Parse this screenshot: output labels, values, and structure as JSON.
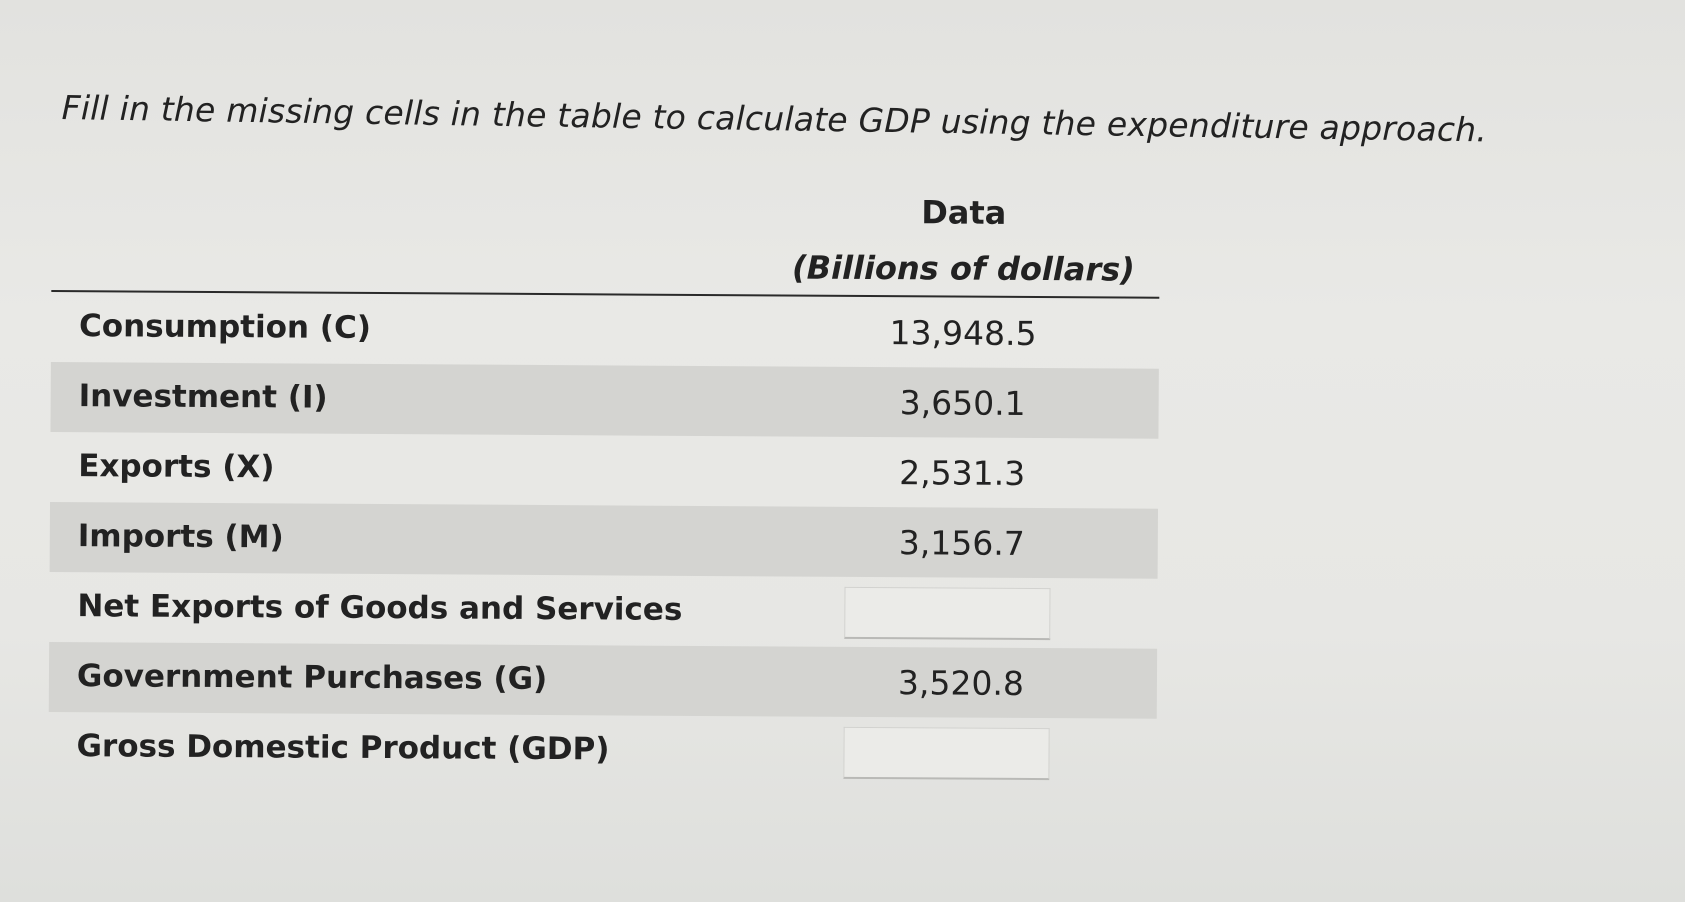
{
  "instructions": "Fill in the missing cells in the table to calculate GDP using the expenditure approach.",
  "table": {
    "header": {
      "line1": "Data",
      "line2": "(Billions of dollars)"
    },
    "rows": [
      {
        "label": "Consumption (C)",
        "value": "13,948.5"
      },
      {
        "label": "Investment (I)",
        "value": "3,650.1"
      },
      {
        "label": "Exports (X)",
        "value": "2,531.3"
      },
      {
        "label": "Imports (M)",
        "value": "3,156.7"
      },
      {
        "label": "Net Exports of Goods and Services",
        "input_value": ""
      },
      {
        "label": "Government Purchases (G)",
        "value": "3,520.8"
      },
      {
        "label": "Gross Domestic Product (GDP)",
        "input_value": ""
      }
    ]
  }
}
